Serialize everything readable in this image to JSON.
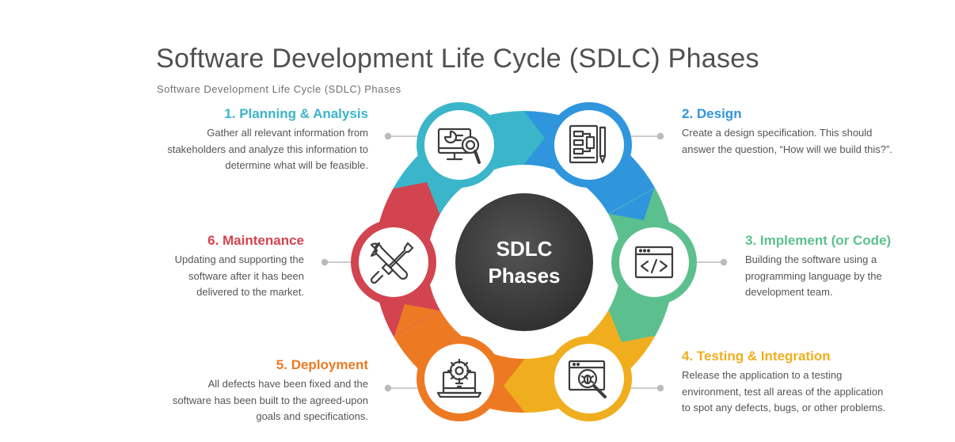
{
  "header": {
    "title": "Software Development Life Cycle (SDLC) Phases",
    "subtitle": "Software Development Life Cycle (SDLC) Phases"
  },
  "center": {
    "line1": "SDLC",
    "line2": "Phases"
  },
  "phases": [
    {
      "title": "1. Planning & Analysis",
      "description": "Gather all relevant information from stakeholders and analyze this information to determine what will be feasible.",
      "color": "#3bb5c9",
      "icon": "monitor-magnifier-icon"
    },
    {
      "title": "2. Design",
      "description": "Create a design specification. This should answer the question, “How will we build this?”.",
      "color": "#2f96dd",
      "icon": "blueprint-pencil-icon"
    },
    {
      "title": "3. Implement (or Code)",
      "description": "Building the software using a programming language by the development team.",
      "color": "#5cc08e",
      "icon": "code-window-icon"
    },
    {
      "title": "4. Testing & Integration",
      "description": "Release the application to a testing environment, test all areas of the application to spot any defects, bugs, or other problems.",
      "color": "#f0ae1e",
      "icon": "bug-search-icon"
    },
    {
      "title": "5. Deployment",
      "description": "All defects have been fixed and the software has been built to the agreed-upon goals and specifications.",
      "color": "#ed7a23",
      "icon": "laptop-gear-icon"
    },
    {
      "title": "6. Maintenance",
      "description": "Updating and supporting the software after it has been delivered to the market.",
      "color": "#d2444f",
      "icon": "wrench-screwdriver-icon"
    }
  ],
  "colors": {
    "title_text": "#505050",
    "center_fill": "#3d3d3d",
    "connector_line": "#bbbbbb"
  }
}
